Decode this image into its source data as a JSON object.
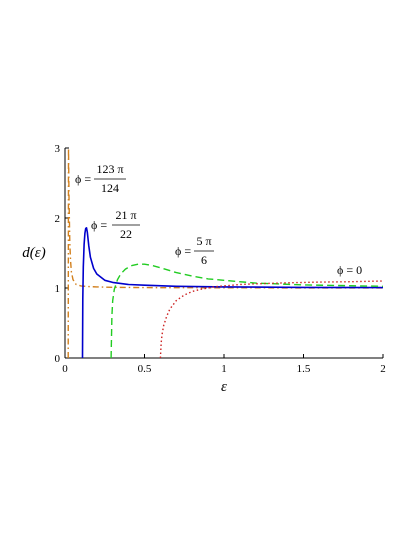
{
  "chart_data": {
    "type": "line",
    "xlabel": "ε",
    "ylabel": "d(ε)",
    "xlim": [
      0,
      2
    ],
    "ylim": [
      0,
      3
    ],
    "x_ticks": [
      "0",
      "0.5",
      "1",
      "1.5",
      "2"
    ],
    "x_tick_values": [
      0,
      0.5,
      1,
      1.5,
      2
    ],
    "y_ticks": [
      "0",
      "1",
      "2",
      "3"
    ],
    "y_tick_values": [
      0,
      1,
      2,
      3
    ],
    "grid": false,
    "series": [
      {
        "label_left": "ϕ =",
        "label_num": "123 π",
        "label_den": "124",
        "color": "#d2801e",
        "style": "dash-dot",
        "x": [
          0.02,
          0.022,
          0.025,
          0.03,
          0.035,
          0.04,
          0.05,
          0.07,
          0.1,
          0.15,
          0.2,
          0.3,
          0.5,
          1.0,
          1.5,
          2.0
        ],
        "y": [
          0,
          3.0,
          2.3,
          1.65,
          1.38,
          1.23,
          1.12,
          1.05,
          1.03,
          1.02,
          1.015,
          1.01,
          1.006,
          1.003,
          1.002,
          1.001
        ]
      },
      {
        "label_left": "ϕ =",
        "label_num": "21 π",
        "label_den": "22",
        "color": "#0000cc",
        "style": "solid",
        "x": [
          0.11,
          0.112,
          0.115,
          0.12,
          0.125,
          0.13,
          0.135,
          0.14,
          0.15,
          0.16,
          0.18,
          0.2,
          0.25,
          0.3,
          0.4,
          0.5,
          0.7,
          1.0,
          1.5,
          2.0
        ],
        "y": [
          0,
          0.85,
          1.3,
          1.62,
          1.78,
          1.85,
          1.86,
          1.8,
          1.6,
          1.44,
          1.28,
          1.2,
          1.11,
          1.08,
          1.05,
          1.04,
          1.025,
          1.015,
          1.008,
          1.005
        ]
      },
      {
        "label_left": "ϕ =",
        "label_num": "5 π",
        "label_den": "6",
        "color": "#22cc22",
        "style": "dashed",
        "x": [
          0.29,
          0.295,
          0.3,
          0.31,
          0.33,
          0.35,
          0.38,
          0.42,
          0.46,
          0.5,
          0.55,
          0.6,
          0.7,
          0.8,
          0.9,
          1.0,
          1.2,
          1.5,
          2.0
        ],
        "y": [
          0,
          0.6,
          0.82,
          0.98,
          1.12,
          1.2,
          1.27,
          1.32,
          1.34,
          1.34,
          1.32,
          1.29,
          1.22,
          1.17,
          1.13,
          1.11,
          1.07,
          1.045,
          1.025
        ]
      },
      {
        "label_left": "ϕ = 0",
        "label_num": "",
        "label_den": "",
        "color": "#cc2222",
        "style": "dotted",
        "x": [
          0.6,
          0.605,
          0.61,
          0.62,
          0.64,
          0.66,
          0.7,
          0.75,
          0.8,
          0.85,
          0.9,
          0.95,
          1.0,
          1.1,
          1.2,
          1.4,
          1.6,
          1.8,
          2.0
        ],
        "y": [
          0,
          0.22,
          0.33,
          0.46,
          0.6,
          0.7,
          0.82,
          0.9,
          0.95,
          0.98,
          1.0,
          1.02,
          1.03,
          1.05,
          1.06,
          1.075,
          1.085,
          1.09,
          1.1
        ]
      }
    ]
  }
}
